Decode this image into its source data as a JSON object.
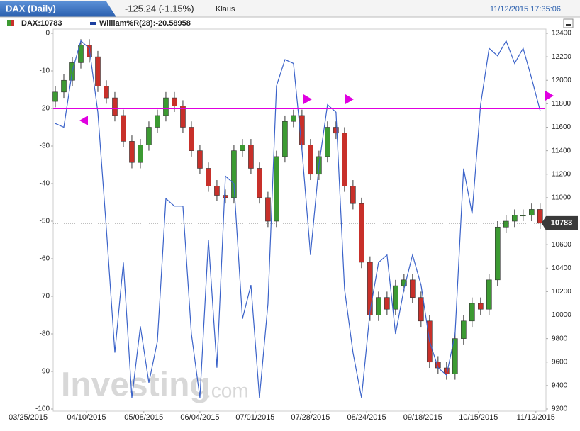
{
  "header": {
    "title": "DAX (Daily)",
    "change": "-125.24 (-1.15%)",
    "user": "Klaus",
    "timestamp": "11/12/2015 17:35:06"
  },
  "watermark": {
    "brand": "Investing",
    "suffix": ".com"
  },
  "chart_data": {
    "type": "candlestick",
    "xlim": [
      -0.25,
      57.6
    ],
    "xticks": [
      {
        "value": -3.2,
        "label": "03/25/2015"
      },
      {
        "value": 3.67,
        "label": "04/10/2015"
      },
      {
        "value": 10.4,
        "label": "05/08/2015"
      },
      {
        "value": 17,
        "label": "06/04/2015"
      },
      {
        "value": 23.5,
        "label": "07/01/2015"
      },
      {
        "value": 30,
        "label": "07/28/2015"
      },
      {
        "value": 36.6,
        "label": "08/24/2015"
      },
      {
        "value": 43.2,
        "label": "09/18/2015"
      },
      {
        "value": 49.75,
        "label": "10/15/2015"
      },
      {
        "value": 56.5,
        "label": "11/12/2015"
      }
    ],
    "ylim": [
      -100,
      0
    ],
    "yticks": [
      0,
      -10,
      -20,
      -30,
      -40,
      -50,
      -60,
      -70,
      -80,
      -90,
      -100
    ],
    "y2lim": [
      9200,
      12400
    ],
    "y2ticks": [
      12400,
      12200,
      12000,
      11800,
      11600,
      11400,
      11200,
      11000,
      10800,
      10600,
      10400,
      10200,
      10000,
      9800,
      9600,
      9400,
      9200
    ],
    "hlines": [
      {
        "value": -20,
        "color": "#e000e0"
      }
    ],
    "series": [
      {
        "name": "DAX:10783",
        "type": "candlestick",
        "axis": "y2",
        "up_color": "#3c9a32",
        "down_color": "#c8302a",
        "open": [
          11820,
          11900,
          12000,
          12150,
          12300,
          12200,
          11950,
          11850,
          11700,
          11480,
          11300,
          11450,
          11600,
          11700,
          11850,
          11780,
          11600,
          11400,
          11250,
          11100,
          11020,
          11000,
          11400,
          11450,
          11250,
          11000,
          10800,
          11350,
          11650,
          11700,
          11450,
          11200,
          11350,
          11600,
          11550,
          11100,
          10950,
          10450,
          10000,
          10150,
          10050,
          10250,
          10300,
          10150,
          9950,
          9600,
          9550,
          9500,
          9800,
          9950,
          10100,
          10050,
          10300,
          10750,
          10800,
          10850,
          10850,
          10900
        ],
        "high": [
          11950,
          12050,
          12200,
          12350,
          12350,
          12250,
          12000,
          11900,
          11750,
          11530,
          11500,
          11650,
          11750,
          11900,
          11900,
          11830,
          11650,
          11450,
          11300,
          11150,
          11070,
          11450,
          11500,
          11500,
          11300,
          11050,
          11400,
          11700,
          11750,
          11750,
          11500,
          11400,
          11650,
          11650,
          11600,
          11150,
          11000,
          10500,
          10200,
          10200,
          10300,
          10350,
          10350,
          10200,
          10000,
          9650,
          9600,
          9850,
          10000,
          10150,
          10150,
          10350,
          10800,
          10850,
          10900,
          10900,
          10950,
          10950
        ],
        "low": [
          11770,
          11850,
          11950,
          12100,
          12150,
          11900,
          11800,
          11650,
          11430,
          11250,
          11250,
          11400,
          11550,
          11650,
          11730,
          11550,
          11350,
          11200,
          11050,
          10970,
          10950,
          10950,
          11350,
          11200,
          10950,
          10750,
          10750,
          11300,
          11600,
          11400,
          11150,
          11150,
          11300,
          11500,
          11050,
          10900,
          10400,
          9950,
          9950,
          10000,
          10000,
          10200,
          10100,
          9900,
          9550,
          9500,
          9450,
          9450,
          9750,
          9900,
          10000,
          10000,
          10250,
          10700,
          10750,
          10800,
          10800,
          10733
        ],
        "close": [
          11900,
          12000,
          12150,
          12300,
          12200,
          11950,
          11850,
          11700,
          11480,
          11300,
          11450,
          11600,
          11700,
          11850,
          11780,
          11600,
          11400,
          11250,
          11100,
          11020,
          11000,
          11400,
          11450,
          11250,
          11000,
          10800,
          11350,
          11650,
          11700,
          11450,
          11200,
          11350,
          11600,
          11550,
          11100,
          10950,
          10450,
          10000,
          10150,
          10050,
          10250,
          10300,
          10150,
          9950,
          9600,
          9550,
          9500,
          9800,
          9950,
          10100,
          10050,
          10300,
          10750,
          10800,
          10850,
          10850,
          10900,
          10783
        ]
      },
      {
        "name": "William%R(28):-20.58958",
        "type": "line",
        "axis": "y",
        "color": "#3a62c9",
        "values": [
          -24,
          -25,
          -10,
          -2,
          -4,
          -21,
          -52,
          -85,
          -61,
          -97,
          -78,
          -93,
          -82,
          -44,
          -46,
          -46,
          -80,
          -97,
          -55,
          -89,
          -38,
          -40,
          -76,
          -67,
          -97,
          -72,
          -14,
          -7,
          -8,
          -31,
          -59,
          -35,
          -19,
          -21,
          -68,
          -85,
          -97,
          -74,
          -61,
          -59,
          -80,
          -68,
          -59,
          -67,
          -82,
          -89,
          -91,
          -80,
          -36,
          -48,
          -19,
          -4,
          -6,
          -2,
          -8,
          -4,
          -12,
          -20.58958
        ]
      }
    ]
  }
}
